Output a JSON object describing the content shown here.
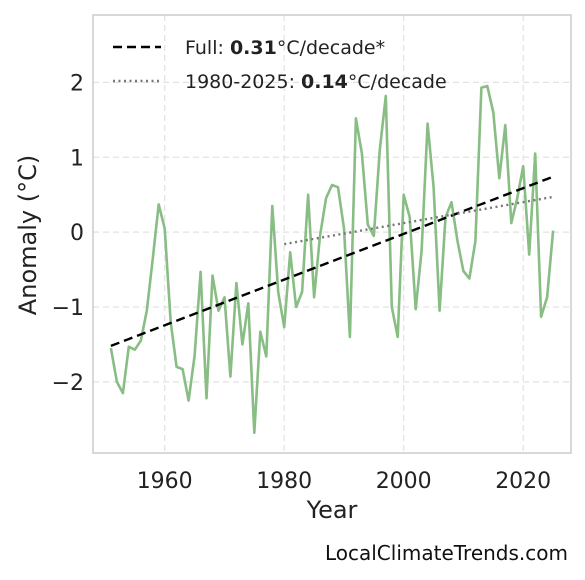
{
  "chart_data": {
    "type": "line",
    "xlabel": "Year",
    "ylabel": "Anomaly (°C)",
    "xlim": [
      1948,
      2028
    ],
    "ylim": [
      -2.95,
      2.9
    ],
    "xticks": [
      1960,
      1980,
      2000,
      2020
    ],
    "yticks": [
      -2,
      -1,
      0,
      1,
      2
    ],
    "ytick_labels": [
      "−2",
      "−1",
      "0",
      "1",
      "2"
    ],
    "grid": true,
    "legend_position": "top-left",
    "colors": {
      "data": "#88bd84",
      "full_trend": "#000000",
      "recent_trend": "#777777"
    },
    "legend": [
      {
        "prefix": "Full: ",
        "value": "0.31",
        "suffix": "°C/decade*",
        "style": "dashed"
      },
      {
        "prefix": "1980-2025: ",
        "value": "0.14",
        "suffix": "°C/decade",
        "style": "dotted"
      }
    ],
    "series": [
      {
        "kind": "data",
        "x": [
          1951,
          1952,
          1953,
          1954,
          1955,
          1956,
          1957,
          1958,
          1959,
          1960,
          1961,
          1962,
          1963,
          1964,
          1965,
          1966,
          1967,
          1968,
          1969,
          1970,
          1971,
          1972,
          1973,
          1974,
          1975,
          1976,
          1977,
          1978,
          1979,
          1980,
          1981,
          1982,
          1983,
          1984,
          1985,
          1986,
          1987,
          1988,
          1989,
          1990,
          1991,
          1992,
          1993,
          1994,
          1995,
          1996,
          1997,
          1998,
          1999,
          2000,
          2001,
          2002,
          2003,
          2004,
          2005,
          2006,
          2007,
          2008,
          2009,
          2010,
          2011,
          2012,
          2013,
          2014,
          2015,
          2016,
          2017,
          2018,
          2019,
          2020,
          2021,
          2022,
          2023,
          2024,
          2025
        ],
        "y": [
          -1.55,
          -2.0,
          -2.15,
          -1.53,
          -1.57,
          -1.45,
          -1.05,
          -0.35,
          0.37,
          0.05,
          -1.2,
          -1.8,
          -1.83,
          -2.25,
          -1.65,
          -0.53,
          -2.22,
          -0.58,
          -1.05,
          -0.87,
          -1.93,
          -0.68,
          -1.5,
          -0.95,
          -2.68,
          -1.33,
          -1.66,
          0.35,
          -0.8,
          -1.27,
          -0.27,
          -1.0,
          -0.8,
          0.5,
          -0.87,
          -0.05,
          0.45,
          0.63,
          0.6,
          0.05,
          -1.4,
          1.52,
          1.05,
          0.1,
          -0.05,
          1.1,
          1.82,
          -1.0,
          -1.4,
          0.5,
          0.2,
          -1.03,
          -0.25,
          1.45,
          0.6,
          -1.05,
          0.2,
          0.4,
          -0.12,
          -0.52,
          -0.62,
          -0.12,
          1.93,
          1.95,
          1.6,
          0.72,
          1.43,
          0.12,
          0.45,
          0.88,
          -0.3,
          1.05,
          -1.13,
          -0.87,
          0.02
        ]
      },
      {
        "kind": "full-trend",
        "x": [
          1951,
          2025
        ],
        "y": [
          -1.52,
          0.74
        ]
      },
      {
        "kind": "recent-trend",
        "x": [
          1980,
          2025
        ],
        "y": [
          -0.16,
          0.47
        ]
      }
    ]
  },
  "watermark": "LocalClimateTrends.com"
}
